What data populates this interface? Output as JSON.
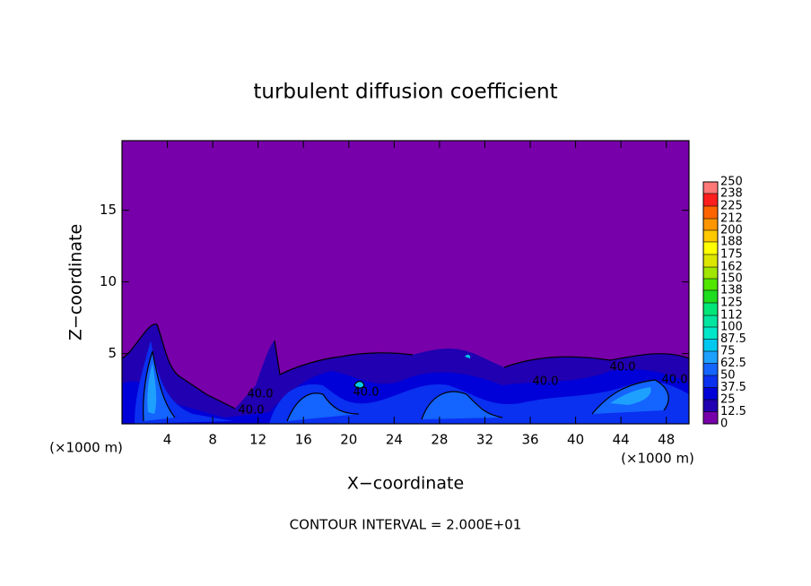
{
  "chart_data": {
    "type": "contour",
    "title": "turbulent diffusion coefficient",
    "xlabel": "X−coordinate",
    "ylabel": "Z−coordinate",
    "x_unit": "(×1000 m)",
    "y_unit": "(×1000 m)",
    "footer": "CONTOUR INTERVAL = 2.000E+01",
    "xlim": [
      0,
      50
    ],
    "xticks": [
      4,
      8,
      12,
      16,
      20,
      24,
      28,
      32,
      36,
      40,
      44,
      48
    ],
    "ylim": [
      0.1,
      19.85
    ],
    "yticks": [
      5,
      10,
      15
    ],
    "contour_labels": [
      "40.0",
      "40.0",
      "40.0",
      "40.0",
      "40.0",
      "40.0"
    ],
    "colorbar": {
      "clim": [
        0,
        250
      ],
      "levels": [
        0,
        12.5,
        25,
        37.5,
        50,
        62.5,
        75,
        87.5,
        100,
        112,
        125,
        138,
        150,
        162,
        175,
        188,
        200,
        212,
        225,
        238,
        250
      ],
      "colors": [
        "#7700aa",
        "#2000b0",
        "#0000d8",
        "#0a30f0",
        "#1464ff",
        "#1ea0ff",
        "#00c8f0",
        "#00e6c8",
        "#00e6a0",
        "#00e678",
        "#1edc1e",
        "#50e600",
        "#a0e600",
        "#dce600",
        "#ffff00",
        "#ffc800",
        "#ff9600",
        "#ff6400",
        "#ff1e1e",
        "#ff7878"
      ]
    }
  }
}
